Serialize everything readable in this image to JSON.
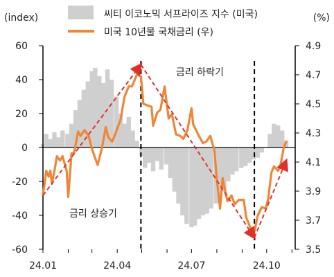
{
  "chart_data": {
    "type": "bar+line",
    "left_axis": {
      "unit_label": "(index)",
      "ylim": [
        -60,
        60
      ],
      "ticks": [
        -60,
        -40,
        -20,
        0,
        20,
        40,
        60
      ]
    },
    "right_axis": {
      "unit_label": "(%)",
      "ylim": [
        3.5,
        4.9
      ],
      "ticks": [
        3.5,
        3.7,
        3.9,
        4.1,
        4.3,
        4.5,
        4.7,
        4.9
      ]
    },
    "x_axis": {
      "range_months": [
        "24.01",
        "24.11"
      ],
      "tick_labels": [
        "24.01",
        "24.04",
        "24.07",
        "24.10"
      ]
    },
    "legend": {
      "placement": "top-center",
      "items": [
        {
          "label": "씨티 이코노믹 서프라이즈 지수 (미국)",
          "color": "#cfcfcf",
          "kind": "bar"
        },
        {
          "label": "미국 10년물 국채금리 (우)",
          "color": "#ee8636",
          "kind": "line"
        }
      ]
    },
    "annotations": [
      {
        "text": "금리 상승기"
      },
      {
        "text": "금리 하락기"
      }
    ],
    "series": [
      {
        "name": "씨티 이코노믹 서프라이즈 지수 (미국)",
        "axis": "left",
        "points": [
          [
            "2024-01-01",
            2
          ],
          [
            "2024-01-05",
            8
          ],
          [
            "2024-01-10",
            5
          ],
          [
            "2024-01-15",
            9
          ],
          [
            "2024-01-20",
            6
          ],
          [
            "2024-01-25",
            10
          ],
          [
            "2024-01-31",
            8
          ],
          [
            "2024-02-05",
            14
          ],
          [
            "2024-02-10",
            22
          ],
          [
            "2024-02-15",
            28
          ],
          [
            "2024-02-20",
            34
          ],
          [
            "2024-02-25",
            39
          ],
          [
            "2024-03-01",
            45
          ],
          [
            "2024-03-05",
            47
          ],
          [
            "2024-03-10",
            42
          ],
          [
            "2024-03-15",
            38
          ],
          [
            "2024-03-20",
            46
          ],
          [
            "2024-03-25",
            40
          ],
          [
            "2024-03-31",
            30
          ],
          [
            "2024-04-05",
            20
          ],
          [
            "2024-04-10",
            14
          ],
          [
            "2024-04-15",
            18
          ],
          [
            "2024-04-20",
            10
          ],
          [
            "2024-04-25",
            4
          ],
          [
            "2024-05-01",
            -5
          ],
          [
            "2024-05-05",
            -12
          ],
          [
            "2024-05-10",
            -9
          ],
          [
            "2024-05-15",
            -14
          ],
          [
            "2024-05-20",
            -8
          ],
          [
            "2024-05-25",
            -13
          ],
          [
            "2024-05-31",
            -10
          ],
          [
            "2024-06-05",
            -18
          ],
          [
            "2024-06-10",
            -26
          ],
          [
            "2024-06-15",
            -33
          ],
          [
            "2024-06-20",
            -40
          ],
          [
            "2024-06-25",
            -45
          ],
          [
            "2024-07-01",
            -47
          ],
          [
            "2024-07-05",
            -46
          ],
          [
            "2024-07-10",
            -42
          ],
          [
            "2024-07-15",
            -40
          ],
          [
            "2024-07-20",
            -39
          ],
          [
            "2024-07-25",
            -36
          ],
          [
            "2024-07-31",
            -33
          ],
          [
            "2024-08-05",
            -30
          ],
          [
            "2024-08-10",
            -26
          ],
          [
            "2024-08-15",
            -20
          ],
          [
            "2024-08-20",
            -16
          ],
          [
            "2024-08-25",
            -14
          ],
          [
            "2024-08-31",
            -12
          ],
          [
            "2024-09-05",
            -11
          ],
          [
            "2024-09-10",
            -9
          ],
          [
            "2024-09-15",
            -7
          ],
          [
            "2024-09-20",
            -6
          ],
          [
            "2024-09-25",
            -3
          ],
          [
            "2024-09-30",
            0
          ],
          [
            "2024-10-05",
            8
          ],
          [
            "2024-10-10",
            14
          ],
          [
            "2024-10-15",
            13
          ],
          [
            "2024-10-20",
            10
          ],
          [
            "2024-10-25",
            4
          ]
        ]
      },
      {
        "name": "미국 10년물 국채금리 (우)",
        "axis": "right",
        "points": [
          [
            "2024-01-01",
            3.88
          ],
          [
            "2024-01-03",
            3.95
          ],
          [
            "2024-01-05",
            4.04
          ],
          [
            "2024-01-08",
            4.0
          ],
          [
            "2024-01-10",
            4.04
          ],
          [
            "2024-01-12",
            3.95
          ],
          [
            "2024-01-16",
            4.07
          ],
          [
            "2024-01-18",
            4.14
          ],
          [
            "2024-01-22",
            4.11
          ],
          [
            "2024-01-25",
            4.14
          ],
          [
            "2024-01-30",
            4.04
          ],
          [
            "2024-02-01",
            3.86
          ],
          [
            "2024-02-05",
            4.16
          ],
          [
            "2024-02-08",
            4.16
          ],
          [
            "2024-02-13",
            4.31
          ],
          [
            "2024-02-16",
            4.28
          ],
          [
            "2024-02-21",
            4.32
          ],
          [
            "2024-02-26",
            4.28
          ],
          [
            "2024-03-01",
            4.19
          ],
          [
            "2024-03-06",
            4.11
          ],
          [
            "2024-03-08",
            4.08
          ],
          [
            "2024-03-13",
            4.19
          ],
          [
            "2024-03-18",
            4.34
          ],
          [
            "2024-03-21",
            4.27
          ],
          [
            "2024-03-26",
            4.24
          ],
          [
            "2024-04-01",
            4.33
          ],
          [
            "2024-04-05",
            4.39
          ],
          [
            "2024-04-10",
            4.55
          ],
          [
            "2024-04-15",
            4.62
          ],
          [
            "2024-04-19",
            4.62
          ],
          [
            "2024-04-25",
            4.7
          ],
          [
            "2024-04-30",
            4.69
          ],
          [
            "2024-05-03",
            4.5
          ],
          [
            "2024-05-08",
            4.49
          ],
          [
            "2024-05-13",
            4.48
          ],
          [
            "2024-05-15",
            4.35
          ],
          [
            "2024-05-20",
            4.44
          ],
          [
            "2024-05-24",
            4.46
          ],
          [
            "2024-05-29",
            4.62
          ],
          [
            "2024-06-03",
            4.4
          ],
          [
            "2024-06-07",
            4.43
          ],
          [
            "2024-06-12",
            4.29
          ],
          [
            "2024-06-17",
            4.28
          ],
          [
            "2024-06-21",
            4.26
          ],
          [
            "2024-06-26",
            4.32
          ],
          [
            "2024-07-01",
            4.47
          ],
          [
            "2024-07-03",
            4.36
          ],
          [
            "2024-07-10",
            4.28
          ],
          [
            "2024-07-15",
            4.23
          ],
          [
            "2024-07-19",
            4.24
          ],
          [
            "2024-07-24",
            4.28
          ],
          [
            "2024-07-29",
            4.18
          ],
          [
            "2024-08-01",
            3.98
          ],
          [
            "2024-08-05",
            3.78
          ],
          [
            "2024-08-08",
            3.99
          ],
          [
            "2024-08-14",
            3.83
          ],
          [
            "2024-08-19",
            3.87
          ],
          [
            "2024-08-23",
            3.81
          ],
          [
            "2024-08-28",
            3.84
          ],
          [
            "2024-09-03",
            3.84
          ],
          [
            "2024-09-06",
            3.72
          ],
          [
            "2024-09-11",
            3.65
          ],
          [
            "2024-09-16",
            3.62
          ],
          [
            "2024-09-20",
            3.73
          ],
          [
            "2024-09-25",
            3.79
          ],
          [
            "2024-09-30",
            3.78
          ],
          [
            "2024-10-03",
            3.85
          ],
          [
            "2024-10-07",
            4.03
          ],
          [
            "2024-10-10",
            4.07
          ],
          [
            "2024-10-15",
            4.04
          ],
          [
            "2024-10-18",
            4.08
          ],
          [
            "2024-10-22",
            4.2
          ],
          [
            "2024-10-25",
            4.24
          ]
        ]
      }
    ],
    "event_lines": [
      "2024-04-30",
      "2024-09-16"
    ],
    "trend_arrows": [
      {
        "from": [
          "2024-01-01",
          3.87
        ],
        "to": [
          "2024-04-30",
          4.77
        ]
      },
      {
        "from": [
          "2024-04-30",
          4.77
        ],
        "to": [
          "2024-09-16",
          3.58
        ]
      },
      {
        "from": [
          "2024-09-16",
          3.58
        ],
        "to": [
          "2024-10-25",
          4.11
        ]
      }
    ],
    "colors": {
      "bar": "#cfcfcf",
      "line": "#ee8636",
      "arrow": "#e0302a",
      "axis": "#000000"
    }
  }
}
